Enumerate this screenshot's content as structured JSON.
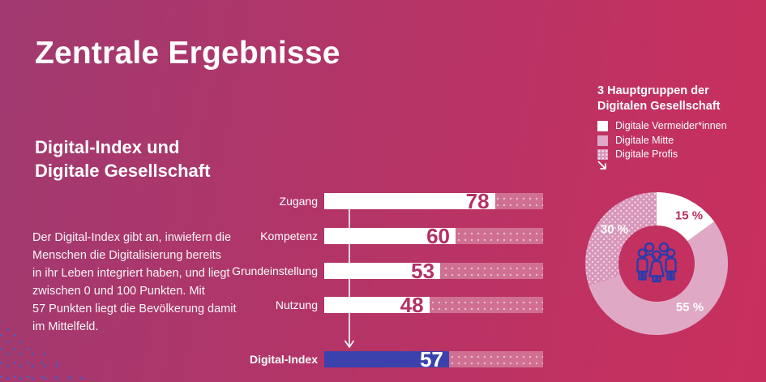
{
  "page": {
    "title": "Zentrale Ergebnisse"
  },
  "left_panel": {
    "heading_line1": "Digital-Index und",
    "heading_line2": "Digitale Gesellschaft",
    "paragraph": "Der Digital-Index gibt an, inwiefern die\nMenschen die Digitalisierung bereits\nin ihr Leben integriert haben, und liegt\nzwischen 0 und 100 Punkten. Mit\n57 Punkten liegt die Bevölkerung damit\nim Mittelfeld."
  },
  "group_section": {
    "heading_line1": "3 Hauptgruppen der",
    "heading_line2": "Digitalen Gesellschaft"
  },
  "colors": {
    "background_left": "#a03a70",
    "background_right": "#c92f5d",
    "accent_magenta": "#b52f65",
    "index_blue": "#3b42ad",
    "pink_light": "#dfa9c5",
    "pink_dotted_base": "#d897ba",
    "people_icon_indigo": "#2c3aab",
    "corner_dots_blue": "#4a58c0",
    "white": "#ffffff"
  },
  "chart_data": [
    {
      "type": "bar",
      "orientation": "horizontal",
      "categories": [
        "Zugang",
        "Kompetenz",
        "Grundeinstellung",
        "Nutzung"
      ],
      "values": [
        78,
        60,
        53,
        48
      ],
      "highlight_row": {
        "label": "Digital-Index",
        "value": 57,
        "color": "#3b42ad"
      },
      "xlim": [
        0,
        100
      ],
      "bar_color": "#ffffff",
      "track_style": "semi-transparent dotted",
      "value_labels_inside": true,
      "annotation": "white arrow from category bars pointing down to Digital-Index row"
    },
    {
      "type": "pie",
      "donut": true,
      "title": "3 Hauptgruppen der Digitalen Gesellschaft",
      "labels": [
        "Digitale Vermeider*innen",
        "Digitale Mitte",
        "Digitale Profis"
      ],
      "values": [
        15,
        55,
        30
      ],
      "display_values": [
        "15 %",
        "55 %",
        "30 %"
      ],
      "colors": [
        "#ffffff",
        "#dfa9c5",
        "dotted-pink"
      ],
      "start_angle": "12 o'clock, clockwise",
      "center_icon": "people-group-icon",
      "legend_position": "above chart"
    }
  ]
}
